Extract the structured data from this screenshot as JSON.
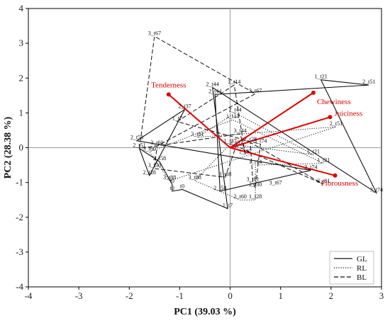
{
  "chart_data": {
    "type": "scatter",
    "title": "",
    "xlabel": "PC1 (39.03 %)",
    "ylabel": "PC2 (28.38 %)",
    "xlim": [
      -4,
      3
    ],
    "ylim": [
      -4,
      4
    ],
    "xticks": [
      "-4",
      "-3",
      "-2",
      "-1",
      "0",
      "1",
      "2",
      "3"
    ],
    "yticks": [
      "-4",
      "-3",
      "-2",
      "-1",
      "0",
      "1",
      "2",
      "3",
      "4"
    ],
    "attribute_color": "#e00000",
    "attributes": [
      {
        "name": "Tenderness",
        "x": -1.22,
        "y": 1.53
      },
      {
        "name": "Chewiness",
        "x": 1.65,
        "y": 1.58
      },
      {
        "name": "Juiciness",
        "x": 1.98,
        "y": 0.88
      },
      {
        "name": "Fibrousness",
        "x": 2.08,
        "y": -0.8
      }
    ],
    "points": [
      {
        "label": "1_t21",
        "x": 1.8,
        "y": 1.95
      },
      {
        "label": "2_t51",
        "x": 2.75,
        "y": 1.8
      },
      {
        "label": "1_t14",
        "x": 0.08,
        "y": 1.8
      },
      {
        "label": "2_t44",
        "x": -0.35,
        "y": 1.73
      },
      {
        "label": "2_t44",
        "x": -0.3,
        "y": 1.53
      },
      {
        "label": "3_t67",
        "x": 0.5,
        "y": 1.55
      },
      {
        "label": "3_t67",
        "x": -1.5,
        "y": 3.2
      },
      {
        "label": "2_t37",
        "x": -0.9,
        "y": 1.1
      },
      {
        "label": "1_t7",
        "x": -1.05,
        "y": 0.75
      },
      {
        "label": "2_t44",
        "x": 0.1,
        "y": 1.0
      },
      {
        "label": "1_t44",
        "x": 0.05,
        "y": 0.8
      },
      {
        "label": "3_t81",
        "x": -0.65,
        "y": 0.3
      },
      {
        "label": "3_t44",
        "x": 0.2,
        "y": 0.4
      },
      {
        "label": "1_t37",
        "x": 0.0,
        "y": 0.1
      },
      {
        "label": "2_t37",
        "x": 0.12,
        "y": 0.05
      },
      {
        "label": "3_t74",
        "x": 0.6,
        "y": 0.1
      },
      {
        "label": "2_t28",
        "x": 0.4,
        "y": 0.15
      },
      {
        "label": "1_t37",
        "x": 0.3,
        "y": -0.2
      },
      {
        "label": "1_t14",
        "x": 0.5,
        "y": -0.5
      },
      {
        "label": "2_t51",
        "x": 2.1,
        "y": 0.6
      },
      {
        "label": "1_t21",
        "x": 1.65,
        "y": -0.2
      },
      {
        "label": "1_t21",
        "x": 1.85,
        "y": -0.45
      },
      {
        "label": "3_t74",
        "x": 1.6,
        "y": -0.65
      },
      {
        "label": "3_t81",
        "x": 1.85,
        "y": -1.05
      },
      {
        "label": "3_t74",
        "x": 2.9,
        "y": -1.3
      },
      {
        "label": "2_t58",
        "x": -1.85,
        "y": 0.2
      },
      {
        "label": "2_t51",
        "x": -1.8,
        "y": -0.02
      },
      {
        "label": "3_t60",
        "x": -1.6,
        "y": -0.12
      },
      {
        "label": "3_t60",
        "x": -1.45,
        "y": 0.05
      },
      {
        "label": "2_t58",
        "x": -1.4,
        "y": -0.4
      },
      {
        "label": "3_t30",
        "x": -1.5,
        "y": -0.6
      },
      {
        "label": "2_t28",
        "x": -1.6,
        "y": -0.8
      },
      {
        "label": "3_t88",
        "x": -1.2,
        "y": -0.95
      },
      {
        "label": "3_t88",
        "x": -0.7,
        "y": -0.95
      },
      {
        "label": "3_t88",
        "x": -0.1,
        "y": -0.85
      },
      {
        "label": "t0",
        "x": -1.15,
        "y": -1.05
      },
      {
        "label": "t0",
        "x": -1.15,
        "y": -1.25
      },
      {
        "label": "t0",
        "x": -0.95,
        "y": -1.2
      },
      {
        "label": "2_t58",
        "x": -0.2,
        "y": -1.25
      },
      {
        "label": "2_t60",
        "x": 0.2,
        "y": -1.5
      },
      {
        "label": "1_t28",
        "x": 0.5,
        "y": -1.5
      },
      {
        "label": "3_t81",
        "x": 0.45,
        "y": -1.0
      },
      {
        "label": "2_t30",
        "x": 0.5,
        "y": -1.15
      },
      {
        "label": "3_t67",
        "x": 0.9,
        "y": -1.1
      },
      {
        "label": "1_t7",
        "x": -0.05,
        "y": -1.75
      }
    ],
    "legend": [
      {
        "name": "GL",
        "style": "solid"
      },
      {
        "name": "RL",
        "style": "dotted"
      },
      {
        "name": "BL",
        "style": "dashed"
      }
    ],
    "legend_position": "bottom-right",
    "grid": false
  }
}
